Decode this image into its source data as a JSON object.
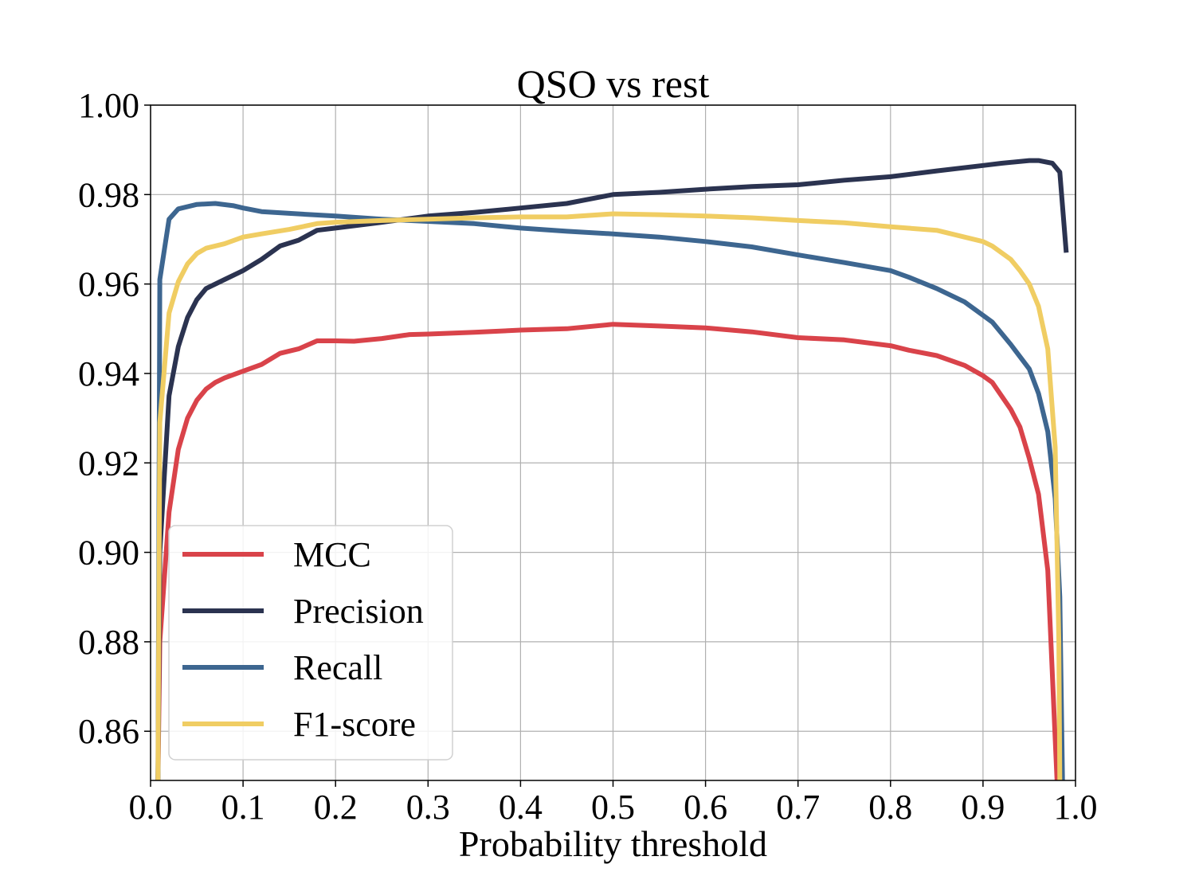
{
  "chart_data": {
    "type": "line",
    "title": "QSO vs rest",
    "xlabel": "Probability threshold",
    "ylabel": "",
    "xlim": [
      0.0,
      1.0
    ],
    "ylim": [
      0.849,
      1.0
    ],
    "x_ticks": [
      "0.0",
      "0.1",
      "0.2",
      "0.3",
      "0.4",
      "0.5",
      "0.6",
      "0.7",
      "0.8",
      "0.9",
      "1.0"
    ],
    "y_ticks": [
      "0.86",
      "0.88",
      "0.90",
      "0.92",
      "0.94",
      "0.96",
      "0.98",
      "1.00"
    ],
    "grid": true,
    "legend_position": "lower-left",
    "series": [
      {
        "name": "MCC",
        "color": "#d9434a",
        "points": [
          [
            0.008,
            0.849
          ],
          [
            0.01,
            0.88
          ],
          [
            0.02,
            0.909
          ],
          [
            0.03,
            0.923
          ],
          [
            0.04,
            0.93
          ],
          [
            0.05,
            0.934
          ],
          [
            0.06,
            0.9365
          ],
          [
            0.07,
            0.938
          ],
          [
            0.08,
            0.939
          ],
          [
            0.1,
            0.9405
          ],
          [
            0.12,
            0.942
          ],
          [
            0.14,
            0.9445
          ],
          [
            0.16,
            0.9455
          ],
          [
            0.18,
            0.9473
          ],
          [
            0.2,
            0.9473
          ],
          [
            0.22,
            0.9472
          ],
          [
            0.25,
            0.9478
          ],
          [
            0.28,
            0.9487
          ],
          [
            0.3,
            0.9488
          ],
          [
            0.35,
            0.9492
          ],
          [
            0.4,
            0.9497
          ],
          [
            0.45,
            0.95
          ],
          [
            0.5,
            0.951
          ],
          [
            0.55,
            0.9506
          ],
          [
            0.6,
            0.9502
          ],
          [
            0.65,
            0.9493
          ],
          [
            0.7,
            0.948
          ],
          [
            0.75,
            0.9475
          ],
          [
            0.8,
            0.9462
          ],
          [
            0.82,
            0.9452
          ],
          [
            0.85,
            0.944
          ],
          [
            0.88,
            0.9418
          ],
          [
            0.9,
            0.9395
          ],
          [
            0.91,
            0.938
          ],
          [
            0.93,
            0.932
          ],
          [
            0.94,
            0.928
          ],
          [
            0.95,
            0.921
          ],
          [
            0.96,
            0.913
          ],
          [
            0.97,
            0.896
          ],
          [
            0.98,
            0.849
          ]
        ]
      },
      {
        "name": "Precision",
        "color": "#2b3350",
        "points": [
          [
            0.008,
            0.849
          ],
          [
            0.01,
            0.9
          ],
          [
            0.02,
            0.935
          ],
          [
            0.03,
            0.946
          ],
          [
            0.04,
            0.9525
          ],
          [
            0.05,
            0.9565
          ],
          [
            0.06,
            0.959
          ],
          [
            0.08,
            0.961
          ],
          [
            0.1,
            0.963
          ],
          [
            0.12,
            0.9655
          ],
          [
            0.14,
            0.9685
          ],
          [
            0.16,
            0.9698
          ],
          [
            0.18,
            0.972
          ],
          [
            0.2,
            0.9725
          ],
          [
            0.25,
            0.9738
          ],
          [
            0.3,
            0.9752
          ],
          [
            0.35,
            0.976
          ],
          [
            0.4,
            0.977
          ],
          [
            0.45,
            0.978
          ],
          [
            0.5,
            0.98
          ],
          [
            0.55,
            0.9805
          ],
          [
            0.6,
            0.9812
          ],
          [
            0.65,
            0.9818
          ],
          [
            0.7,
            0.9822
          ],
          [
            0.75,
            0.9832
          ],
          [
            0.8,
            0.984
          ],
          [
            0.85,
            0.9853
          ],
          [
            0.9,
            0.9865
          ],
          [
            0.92,
            0.987
          ],
          [
            0.95,
            0.9876
          ],
          [
            0.96,
            0.9876
          ],
          [
            0.975,
            0.987
          ],
          [
            0.983,
            0.985
          ],
          [
            0.99,
            0.967
          ]
        ]
      },
      {
        "name": "Recall",
        "color": "#3d6690",
        "points": [
          [
            0.008,
            0.849
          ],
          [
            0.01,
            0.961
          ],
          [
            0.02,
            0.9745
          ],
          [
            0.03,
            0.9768
          ],
          [
            0.05,
            0.9778
          ],
          [
            0.07,
            0.978
          ],
          [
            0.09,
            0.9775
          ],
          [
            0.1,
            0.977
          ],
          [
            0.12,
            0.9762
          ],
          [
            0.15,
            0.9758
          ],
          [
            0.2,
            0.9752
          ],
          [
            0.25,
            0.9745
          ],
          [
            0.3,
            0.974
          ],
          [
            0.35,
            0.9735
          ],
          [
            0.4,
            0.9725
          ],
          [
            0.45,
            0.9718
          ],
          [
            0.5,
            0.9712
          ],
          [
            0.55,
            0.9705
          ],
          [
            0.6,
            0.9695
          ],
          [
            0.65,
            0.9683
          ],
          [
            0.7,
            0.9665
          ],
          [
            0.75,
            0.9648
          ],
          [
            0.8,
            0.963
          ],
          [
            0.82,
            0.9615
          ],
          [
            0.85,
            0.959
          ],
          [
            0.88,
            0.956
          ],
          [
            0.9,
            0.953
          ],
          [
            0.91,
            0.9515
          ],
          [
            0.93,
            0.9465
          ],
          [
            0.95,
            0.941
          ],
          [
            0.96,
            0.9355
          ],
          [
            0.97,
            0.927
          ],
          [
            0.978,
            0.912
          ],
          [
            0.983,
            0.89
          ],
          [
            0.986,
            0.849
          ]
        ]
      },
      {
        "name": "F1-score",
        "color": "#f0cd63",
        "points": [
          [
            0.008,
            0.849
          ],
          [
            0.01,
            0.929
          ],
          [
            0.02,
            0.9535
          ],
          [
            0.03,
            0.9605
          ],
          [
            0.04,
            0.9645
          ],
          [
            0.05,
            0.9668
          ],
          [
            0.06,
            0.968
          ],
          [
            0.08,
            0.969
          ],
          [
            0.1,
            0.9705
          ],
          [
            0.12,
            0.9712
          ],
          [
            0.15,
            0.9722
          ],
          [
            0.18,
            0.9735
          ],
          [
            0.2,
            0.9738
          ],
          [
            0.25,
            0.9742
          ],
          [
            0.3,
            0.9745
          ],
          [
            0.35,
            0.9748
          ],
          [
            0.4,
            0.975
          ],
          [
            0.45,
            0.975
          ],
          [
            0.5,
            0.9757
          ],
          [
            0.55,
            0.9755
          ],
          [
            0.6,
            0.9752
          ],
          [
            0.65,
            0.9748
          ],
          [
            0.7,
            0.9742
          ],
          [
            0.75,
            0.9737
          ],
          [
            0.8,
            0.9728
          ],
          [
            0.85,
            0.972
          ],
          [
            0.88,
            0.9705
          ],
          [
            0.9,
            0.9695
          ],
          [
            0.91,
            0.9685
          ],
          [
            0.93,
            0.9655
          ],
          [
            0.94,
            0.963
          ],
          [
            0.95,
            0.96
          ],
          [
            0.96,
            0.955
          ],
          [
            0.97,
            0.9455
          ],
          [
            0.978,
            0.9235
          ],
          [
            0.982,
            0.88
          ],
          [
            0.983,
            0.849
          ]
        ]
      }
    ]
  }
}
